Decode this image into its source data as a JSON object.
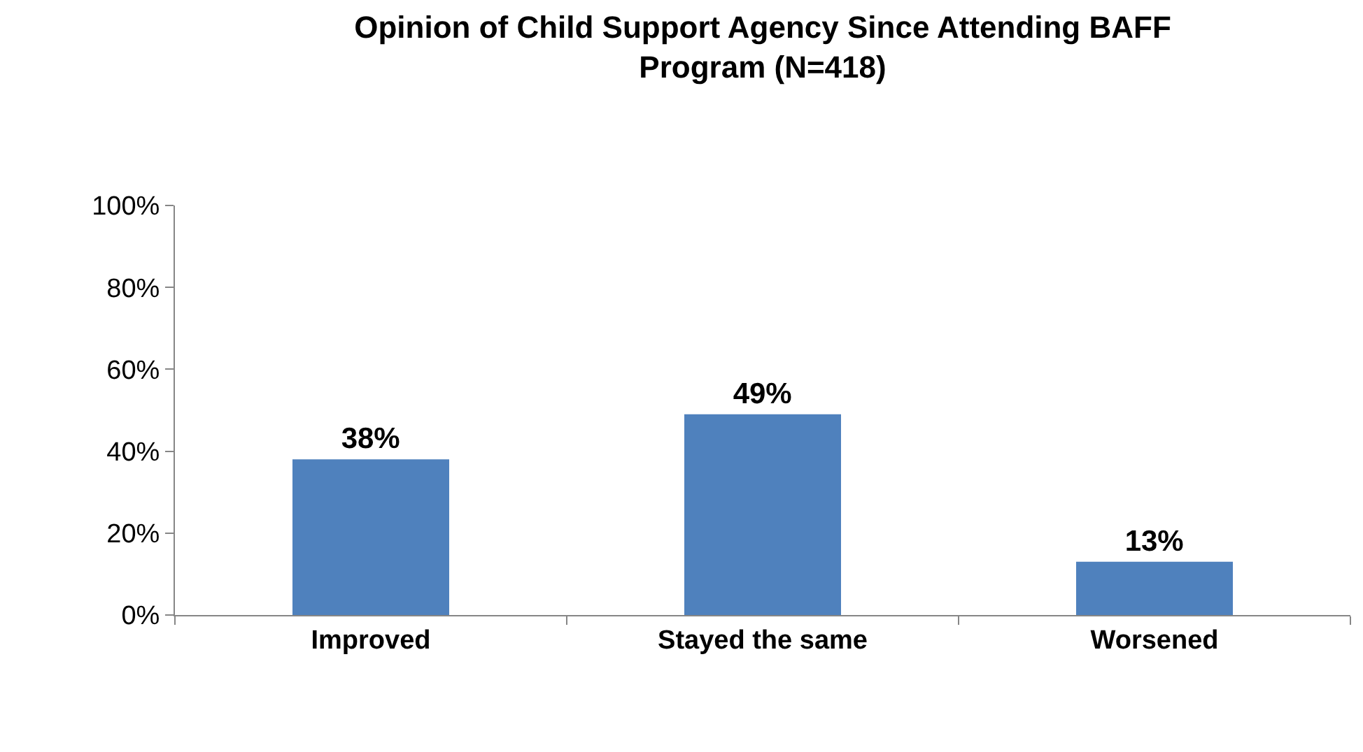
{
  "chart_data": {
    "type": "bar",
    "title": "Opinion of Child Support Agency Since Attending BAFF\nProgram (N=418)",
    "categories": [
      "Improved",
      "Stayed the same",
      "Worsened"
    ],
    "values": [
      38,
      49,
      13
    ],
    "value_labels": [
      "38%",
      "49%",
      "13%"
    ],
    "color": "#4f81bd",
    "ylim": [
      0,
      100
    ],
    "yticks": [
      {
        "value": 0,
        "label": "0%"
      },
      {
        "value": 20,
        "label": "20%"
      },
      {
        "value": 40,
        "label": "40%"
      },
      {
        "value": 60,
        "label": "60%"
      },
      {
        "value": 80,
        "label": "80%"
      },
      {
        "value": 100,
        "label": "100%"
      }
    ]
  }
}
